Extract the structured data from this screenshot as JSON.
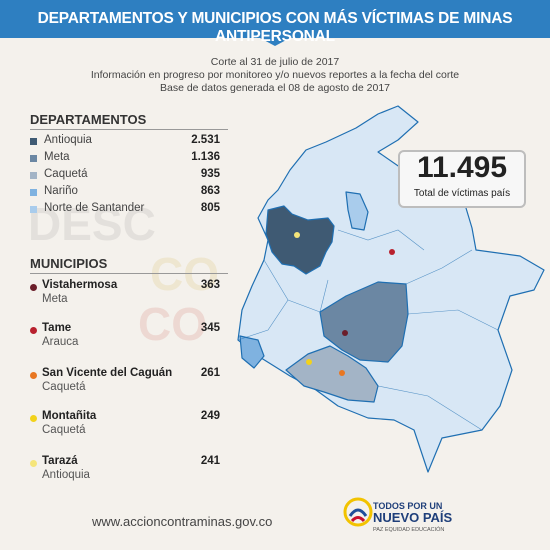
{
  "header": {
    "title": "DEPARTAMENTOS Y MUNICIPIOS CON MÁS VÍCTIMAS DE MINAS ANTIPERSONAL",
    "notes": [
      "Corte al 31 de julio de 2017",
      "Información en progreso por monitoreo y/o nuevos reportes a la fecha del corte",
      "Base de datos generada el 08 de agosto de 2017"
    ]
  },
  "departments": {
    "title": "DEPARTAMENTOS",
    "items": [
      {
        "name": "Antioquia",
        "value": "2.531",
        "color": "#3f5a73"
      },
      {
        "name": "Meta",
        "value": "1.136",
        "color": "#6b87a3"
      },
      {
        "name": "Caquetá",
        "value": "935",
        "color": "#a3b4c6"
      },
      {
        "name": "Nariño",
        "value": "863",
        "color": "#7fb2e0"
      },
      {
        "name": "Norte de Santander",
        "value": "805",
        "color": "#a9ccec"
      }
    ]
  },
  "municipalities": {
    "title": "MUNICIPIOS",
    "items": [
      {
        "name": "Vistahermosa",
        "dept": "Meta",
        "value": "363",
        "color": "#6b1e2a"
      },
      {
        "name": "Tame",
        "dept": "Arauca",
        "value": "345",
        "color": "#b8212e"
      },
      {
        "name": "San Vicente del Caguán",
        "dept": "Caquetá",
        "value": "261",
        "color": "#e87722"
      },
      {
        "name": "Montañita",
        "dept": "Caquetá",
        "value": "249",
        "color": "#f2d21b"
      },
      {
        "name": "Tarazá",
        "dept": "Antioquia",
        "value": "241",
        "color": "#f5e57a"
      }
    ]
  },
  "total": {
    "value": "11.495",
    "label": "Total de víctimas país"
  },
  "footer": {
    "url": "www.accioncontraminas.gov.co"
  },
  "logo": {
    "line1": "TODOS POR UN",
    "line2": "NUEVO PAÍS",
    "line3": "PAZ  EQUIDAD  EDUCACIÓN"
  },
  "watermark": {
    "text": "DESCONTAMINA"
  },
  "colors": {
    "banner": "#2e7fc1",
    "map_base": "#d8e7f5",
    "map_border": "#1f6fb2"
  }
}
